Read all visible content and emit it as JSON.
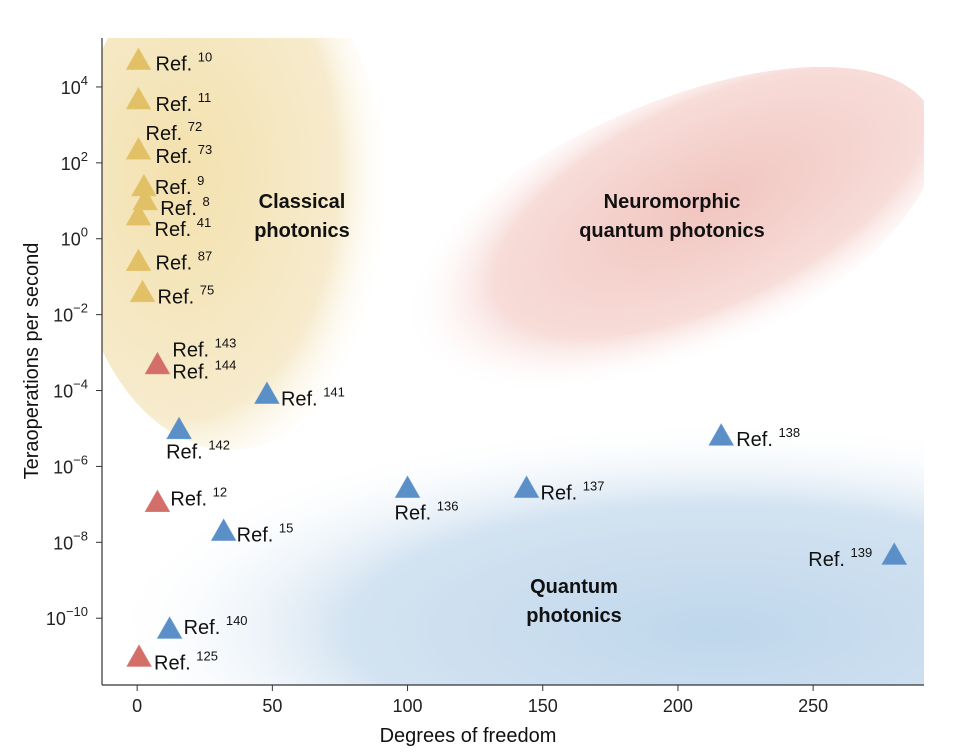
{
  "chart_data": {
    "type": "scatter",
    "title": "",
    "xlabel": "Degrees of freedom",
    "ylabel": "Teraoperations per second",
    "xlim": [
      -13,
      291
    ],
    "ylim_log10": [
      -11.76,
      5.29
    ],
    "y_scale": "log",
    "grid": false,
    "x_ticks": [
      0,
      50,
      100,
      150,
      200,
      250
    ],
    "y_ticks_exp": [
      4,
      2,
      0,
      -2,
      -4,
      -6,
      -8,
      -10
    ],
    "tick_base": "10",
    "colors": {
      "classical": "#e2c066",
      "neuromorphic": "#d36f68",
      "quantum": "#5b8fc8"
    },
    "regions": [
      {
        "name": "classical",
        "label": [
          "Classical",
          "photonics"
        ]
      },
      {
        "name": "neuromorphic",
        "label": [
          "Neuromorphic",
          "quantum photonics"
        ]
      },
      {
        "name": "quantum",
        "label": [
          "Quantum",
          "photonics"
        ]
      }
    ],
    "points": [
      {
        "x": 0.5,
        "y_log10": 4.7,
        "group": "classical",
        "labels": [
          {
            "text": "Ref.",
            "ref": "10"
          }
        ]
      },
      {
        "x": 0.5,
        "y_log10": 3.66,
        "group": "classical",
        "labels": [
          {
            "text": "Ref.",
            "ref": "11"
          }
        ]
      },
      {
        "x": 0.5,
        "y_log10": 2.34,
        "group": "classical",
        "labels": [
          {
            "text": "Ref.",
            "ref": "72"
          },
          {
            "text": "Ref.",
            "ref": "73"
          }
        ]
      },
      {
        "x": 2.5,
        "y_log10": 1.37,
        "group": "classical",
        "labels": [
          {
            "text": "Ref.",
            "ref": "9"
          }
        ]
      },
      {
        "x": 3,
        "y_log10": 1.0,
        "group": "classical",
        "labels": [
          {
            "text": "Ref.",
            "ref": "8"
          }
        ]
      },
      {
        "x": 0.5,
        "y_log10": 0.6,
        "group": "classical",
        "labels": [
          {
            "text": "Ref.",
            "ref": "41"
          }
        ]
      },
      {
        "x": 0.5,
        "y_log10": -0.6,
        "group": "classical",
        "labels": [
          {
            "text": "Ref.",
            "ref": "87"
          }
        ]
      },
      {
        "x": 2,
        "y_log10": -1.42,
        "group": "classical",
        "labels": [
          {
            "text": "Ref.",
            "ref": "75"
          }
        ]
      },
      {
        "x": 7.5,
        "y_log10": -3.32,
        "group": "neuromorphic",
        "labels": [
          {
            "text": "Ref.",
            "ref": "143"
          },
          {
            "text": "Ref.",
            "ref": "144"
          }
        ]
      },
      {
        "x": 48,
        "y_log10": -4.1,
        "group": "quantum",
        "labels": [
          {
            "text": "Ref.",
            "ref": "141"
          }
        ]
      },
      {
        "x": 15.5,
        "y_log10": -5.03,
        "group": "quantum",
        "labels": [
          {
            "text": "Ref.",
            "ref": "142"
          }
        ]
      },
      {
        "x": 216,
        "y_log10": -5.2,
        "group": "quantum",
        "labels": [
          {
            "text": "Ref.",
            "ref": "138"
          }
        ]
      },
      {
        "x": 7.5,
        "y_log10": -6.95,
        "group": "neuromorphic",
        "labels": [
          {
            "text": "Ref.",
            "ref": "12"
          }
        ]
      },
      {
        "x": 100,
        "y_log10": -6.58,
        "group": "quantum",
        "labels": [
          {
            "text": "Ref.",
            "ref": "136"
          }
        ]
      },
      {
        "x": 144,
        "y_log10": -6.58,
        "group": "quantum",
        "labels": [
          {
            "text": "Ref.",
            "ref": "137"
          }
        ]
      },
      {
        "x": 32,
        "y_log10": -7.71,
        "group": "quantum",
        "labels": [
          {
            "text": "Ref.",
            "ref": "15"
          }
        ]
      },
      {
        "x": 280,
        "y_log10": -8.34,
        "group": "quantum",
        "labels": [
          {
            "text": "Ref.",
            "ref": "139"
          }
        ]
      },
      {
        "x": 12,
        "y_log10": -10.29,
        "group": "quantum",
        "labels": [
          {
            "text": "Ref.",
            "ref": "140"
          }
        ]
      },
      {
        "x": 0.7,
        "y_log10": -11.03,
        "group": "neuromorphic",
        "labels": [
          {
            "text": "Ref.",
            "ref": "125"
          }
        ]
      }
    ]
  }
}
